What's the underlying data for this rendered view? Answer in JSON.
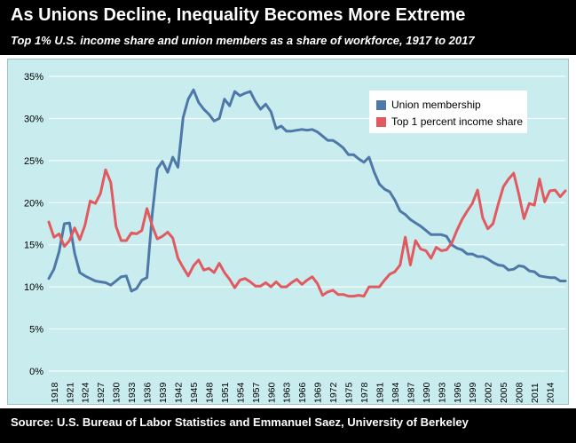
{
  "header": {
    "title": "As Unions Decline, Inequality Becomes More Extreme",
    "subtitle": "Top 1% U.S. income share and union members as a share of workforce, 1917 to 2017"
  },
  "footer": {
    "source": "Source: U.S. Bureau of Labor Statistics and Emmanuel Saez, University of Berkeley"
  },
  "legend": [
    {
      "label": "Union membership",
      "color": "#4e78a8"
    },
    {
      "label": "Top 1 percent income share",
      "color": "#e05a5f"
    }
  ],
  "chart_data": {
    "type": "line",
    "title": "",
    "xlabel": "",
    "ylabel": "",
    "ylim": [
      0,
      35
    ],
    "yticks": [
      "0%",
      "5%",
      "10%",
      "15%",
      "20%",
      "25%",
      "30%",
      "35%"
    ],
    "xlim": [
      1917,
      2017
    ],
    "xticks": [
      1918,
      1921,
      1924,
      1927,
      1930,
      1933,
      1936,
      1939,
      1942,
      1945,
      1948,
      1951,
      1954,
      1957,
      1960,
      1963,
      1966,
      1969,
      1972,
      1975,
      1978,
      1981,
      1984,
      1987,
      1990,
      1993,
      1996,
      1999,
      2002,
      2005,
      2008,
      2011,
      2014
    ],
    "grid": true,
    "legend_position": "top-right",
    "series": [
      {
        "name": "Union membership",
        "color": "#4e78a8",
        "x": [
          1917,
          1918,
          1919,
          1920,
          1921,
          1922,
          1923,
          1924,
          1925,
          1926,
          1927,
          1928,
          1929,
          1930,
          1931,
          1932,
          1933,
          1934,
          1935,
          1936,
          1937,
          1938,
          1939,
          1940,
          1941,
          1942,
          1943,
          1944,
          1945,
          1946,
          1947,
          1948,
          1949,
          1950,
          1951,
          1952,
          1953,
          1954,
          1955,
          1956,
          1957,
          1958,
          1959,
          1960,
          1961,
          1962,
          1963,
          1964,
          1965,
          1966,
          1967,
          1968,
          1969,
          1970,
          1971,
          1972,
          1973,
          1974,
          1975,
          1976,
          1977,
          1978,
          1979,
          1980,
          1981,
          1982,
          1983,
          1984,
          1985,
          1986,
          1987,
          1988,
          1989,
          1990,
          1991,
          1992,
          1993,
          1994,
          1995,
          1996,
          1997,
          1998,
          1999,
          2000,
          2001,
          2002,
          2003,
          2004,
          2005,
          2006,
          2007,
          2008,
          2009,
          2010,
          2011,
          2012,
          2013,
          2014,
          2015,
          2016,
          2017
        ],
        "values": [
          11.0,
          12.1,
          14.2,
          17.5,
          17.6,
          14.0,
          11.7,
          11.3,
          11.0,
          10.7,
          10.6,
          10.5,
          10.2,
          10.7,
          11.2,
          11.3,
          9.5,
          9.8,
          10.8,
          11.1,
          18.5,
          24.0,
          24.9,
          23.6,
          25.4,
          24.2,
          30.1,
          32.3,
          33.4,
          31.9,
          31.1,
          30.5,
          29.7,
          30.0,
          32.3,
          31.5,
          33.2,
          32.7,
          33.0,
          33.2,
          32.0,
          31.1,
          31.7,
          30.8,
          28.8,
          29.1,
          28.5,
          28.5,
          28.6,
          28.7,
          28.6,
          28.7,
          28.4,
          27.9,
          27.4,
          27.4,
          27.0,
          26.5,
          25.7,
          25.7,
          25.2,
          24.8,
          25.4,
          23.6,
          22.2,
          21.6,
          21.3,
          20.3,
          19.0,
          18.6,
          18.0,
          17.6,
          17.2,
          16.7,
          16.2,
          16.2,
          16.2,
          16.0,
          15.0,
          14.6,
          14.4,
          13.9,
          13.9,
          13.6,
          13.6,
          13.3,
          12.9,
          12.6,
          12.5,
          12.0,
          12.1,
          12.5,
          12.4,
          11.9,
          11.8,
          11.3,
          11.2,
          11.1,
          11.1,
          10.7,
          10.7
        ]
      },
      {
        "name": "Top 1 percent income share",
        "color": "#e05a5f",
        "x": [
          1917,
          1918,
          1919,
          1920,
          1921,
          1922,
          1923,
          1924,
          1925,
          1926,
          1927,
          1928,
          1929,
          1930,
          1931,
          1932,
          1933,
          1934,
          1935,
          1936,
          1937,
          1938,
          1939,
          1940,
          1941,
          1942,
          1943,
          1944,
          1945,
          1946,
          1947,
          1948,
          1949,
          1950,
          1951,
          1952,
          1953,
          1954,
          1955,
          1956,
          1957,
          1958,
          1959,
          1960,
          1961,
          1962,
          1963,
          1964,
          1965,
          1966,
          1967,
          1968,
          1969,
          1970,
          1971,
          1972,
          1973,
          1974,
          1975,
          1976,
          1977,
          1978,
          1979,
          1980,
          1981,
          1982,
          1983,
          1984,
          1985,
          1986,
          1987,
          1988,
          1989,
          1990,
          1991,
          1992,
          1993,
          1994,
          1995,
          1996,
          1997,
          1998,
          1999,
          2000,
          2001,
          2002,
          2003,
          2004,
          2005,
          2006,
          2007,
          2008,
          2009,
          2010,
          2011,
          2012,
          2013,
          2014,
          2015,
          2016,
          2017
        ],
        "values": [
          17.7,
          15.9,
          16.3,
          14.8,
          15.5,
          17.0,
          15.6,
          17.3,
          20.2,
          19.9,
          21.1,
          23.9,
          22.4,
          17.2,
          15.5,
          15.5,
          16.4,
          16.3,
          16.7,
          19.3,
          17.3,
          15.7,
          16.0,
          16.5,
          15.8,
          13.4,
          12.3,
          11.3,
          12.5,
          13.2,
          12.0,
          12.2,
          11.7,
          12.8,
          11.7,
          10.9,
          9.9,
          10.8,
          11.0,
          10.6,
          10.1,
          10.1,
          10.5,
          10.0,
          10.6,
          10.0,
          10.0,
          10.5,
          10.9,
          10.3,
          10.8,
          11.2,
          10.4,
          9.0,
          9.4,
          9.6,
          9.1,
          9.1,
          8.9,
          8.9,
          9.0,
          8.9,
          10.0,
          10.0,
          10.0,
          10.8,
          11.5,
          11.8,
          12.6,
          15.9,
          12.6,
          15.5,
          14.5,
          14.3,
          13.4,
          14.7,
          14.3,
          14.4,
          15.2,
          16.7,
          18.0,
          19.0,
          19.9,
          21.5,
          18.2,
          16.9,
          17.5,
          19.8,
          21.9,
          22.8,
          23.5,
          21.0,
          18.1,
          19.9,
          19.7,
          22.8,
          20.1,
          21.4,
          21.5,
          20.7,
          21.4
        ]
      }
    ]
  }
}
